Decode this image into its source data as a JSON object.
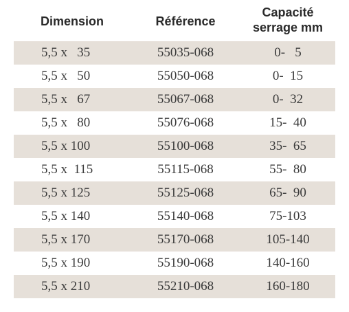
{
  "headers": {
    "dimension": "Dimension",
    "reference": "Référence",
    "capacite_line1": "Capacité",
    "capacite_line2": "serrage mm"
  },
  "rows": [
    {
      "dimension": "5,5 x   35",
      "reference": "55035-068",
      "capacite": "0-   5"
    },
    {
      "dimension": "5,5 x   50",
      "reference": "55050-068",
      "capacite": "0-  15"
    },
    {
      "dimension": "5,5 x   67",
      "reference": "55067-068",
      "capacite": "0-  32"
    },
    {
      "dimension": "5,5 x   80",
      "reference": "55076-068",
      "capacite": "15-  40"
    },
    {
      "dimension": "5,5 x 100",
      "reference": "55100-068",
      "capacite": "35-  65"
    },
    {
      "dimension": "5,5 x  115",
      "reference": "55115-068",
      "capacite": "55-  80"
    },
    {
      "dimension": "5,5 x 125",
      "reference": "55125-068",
      "capacite": "65-  90"
    },
    {
      "dimension": "5,5 x 140",
      "reference": "55140-068",
      "capacite": "75-103"
    },
    {
      "dimension": "5,5 x 170",
      "reference": "55170-068",
      "capacite": "105-140"
    },
    {
      "dimension": "5,5 x 190",
      "reference": "55190-068",
      "capacite": "140-160"
    },
    {
      "dimension": "5,5 x 210",
      "reference": "55210-068",
      "capacite": "160-180"
    }
  ],
  "colors": {
    "shaded_row": "#e6e0d9",
    "text": "#3a3a3a"
  }
}
